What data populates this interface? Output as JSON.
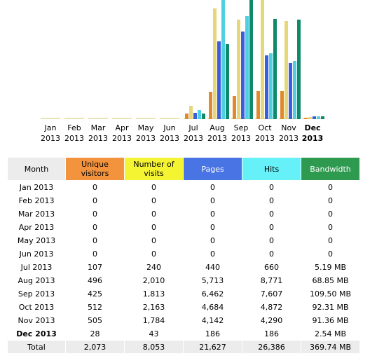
{
  "colors": {
    "unique": "#f4933d",
    "visits": "#f4f433",
    "pages": "#4874e4",
    "hits": "#66f0f8",
    "bandwidth": "#2e9a4f",
    "header_month_bg": "#ececec",
    "visits_bar": "#e6d87a",
    "unique_bar": "#e08a2c",
    "pages_bar": "#3b5fdc",
    "hits_bar": "#4fd0e0",
    "bandwidth_bar": "#0e8a6a"
  },
  "chart_data": {
    "type": "bar",
    "categories": [
      "Jan 2013",
      "Feb 2013",
      "Mar 2013",
      "Apr 2013",
      "May 2013",
      "Jun 2013",
      "Jul 2013",
      "Aug 2013",
      "Sep 2013",
      "Oct 2013",
      "Nov 2013",
      "Dec 2013"
    ],
    "tick_labels": [
      {
        "month": "Jan",
        "year": "2013",
        "bold": false
      },
      {
        "month": "Feb",
        "year": "2013",
        "bold": false
      },
      {
        "month": "Mar",
        "year": "2013",
        "bold": false
      },
      {
        "month": "Apr",
        "year": "2013",
        "bold": false
      },
      {
        "month": "May",
        "year": "2013",
        "bold": false
      },
      {
        "month": "Jun",
        "year": "2013",
        "bold": false
      },
      {
        "month": "Jul",
        "year": "2013",
        "bold": false
      },
      {
        "month": "Aug",
        "year": "2013",
        "bold": false
      },
      {
        "month": "Sep",
        "year": "2013",
        "bold": false
      },
      {
        "month": "Oct",
        "year": "2013",
        "bold": false
      },
      {
        "month": "Nov",
        "year": "2013",
        "bold": false
      },
      {
        "month": "Dec",
        "year": "2013",
        "bold": true
      }
    ],
    "series": [
      {
        "key": "unique",
        "values": [
          0,
          0,
          0,
          0,
          0,
          0,
          107,
          496,
          425,
          512,
          505,
          28
        ]
      },
      {
        "key": "visits",
        "values": [
          0,
          0,
          0,
          0,
          0,
          0,
          240,
          2010,
          1813,
          2163,
          1784,
          43
        ]
      },
      {
        "key": "pages",
        "values": [
          0,
          0,
          0,
          0,
          0,
          0,
          440,
          5713,
          6462,
          4684,
          4142,
          186
        ]
      },
      {
        "key": "hits",
        "values": [
          0,
          0,
          0,
          0,
          0,
          0,
          660,
          8771,
          7607,
          4872,
          4290,
          186
        ]
      },
      {
        "key": "bandwidth",
        "values": [
          0,
          0,
          0,
          0,
          0,
          0,
          5.19,
          68.85,
          109.5,
          92.31,
          91.36,
          2.54
        ]
      }
    ]
  },
  "table": {
    "headers": {
      "month": "Month",
      "unique_line1": "Unique",
      "unique_line2": "visitors",
      "visits_line1": "Number of",
      "visits_line2": "visits",
      "pages": "Pages",
      "hits": "Hits",
      "bandwidth": "Bandwidth"
    },
    "rows": [
      {
        "month": "Jan 2013",
        "unique": "0",
        "visits": "0",
        "pages": "0",
        "hits": "0",
        "bandwidth": "0"
      },
      {
        "month": "Feb 2013",
        "unique": "0",
        "visits": "0",
        "pages": "0",
        "hits": "0",
        "bandwidth": "0"
      },
      {
        "month": "Mar 2013",
        "unique": "0",
        "visits": "0",
        "pages": "0",
        "hits": "0",
        "bandwidth": "0"
      },
      {
        "month": "Apr 2013",
        "unique": "0",
        "visits": "0",
        "pages": "0",
        "hits": "0",
        "bandwidth": "0"
      },
      {
        "month": "May 2013",
        "unique": "0",
        "visits": "0",
        "pages": "0",
        "hits": "0",
        "bandwidth": "0"
      },
      {
        "month": "Jun 2013",
        "unique": "0",
        "visits": "0",
        "pages": "0",
        "hits": "0",
        "bandwidth": "0"
      },
      {
        "month": "Jul 2013",
        "unique": "107",
        "visits": "240",
        "pages": "440",
        "hits": "660",
        "bandwidth": "5.19 MB"
      },
      {
        "month": "Aug 2013",
        "unique": "496",
        "visits": "2,010",
        "pages": "5,713",
        "hits": "8,771",
        "bandwidth": "68.85 MB"
      },
      {
        "month": "Sep 2013",
        "unique": "425",
        "visits": "1,813",
        "pages": "6,462",
        "hits": "7,607",
        "bandwidth": "109.50 MB"
      },
      {
        "month": "Oct 2013",
        "unique": "512",
        "visits": "2,163",
        "pages": "4,684",
        "hits": "4,872",
        "bandwidth": "92.31 MB"
      },
      {
        "month": "Nov 2013",
        "unique": "505",
        "visits": "1,784",
        "pages": "4,142",
        "hits": "4,290",
        "bandwidth": "91.36 MB"
      },
      {
        "month": "Dec 2013",
        "unique": "28",
        "visits": "43",
        "pages": "186",
        "hits": "186",
        "bandwidth": "2.54 MB",
        "current": true
      }
    ],
    "total": {
      "month": "Total",
      "unique": "2,073",
      "visits": "8,053",
      "pages": "21,627",
      "hits": "26,386",
      "bandwidth": "369.74 MB"
    }
  }
}
